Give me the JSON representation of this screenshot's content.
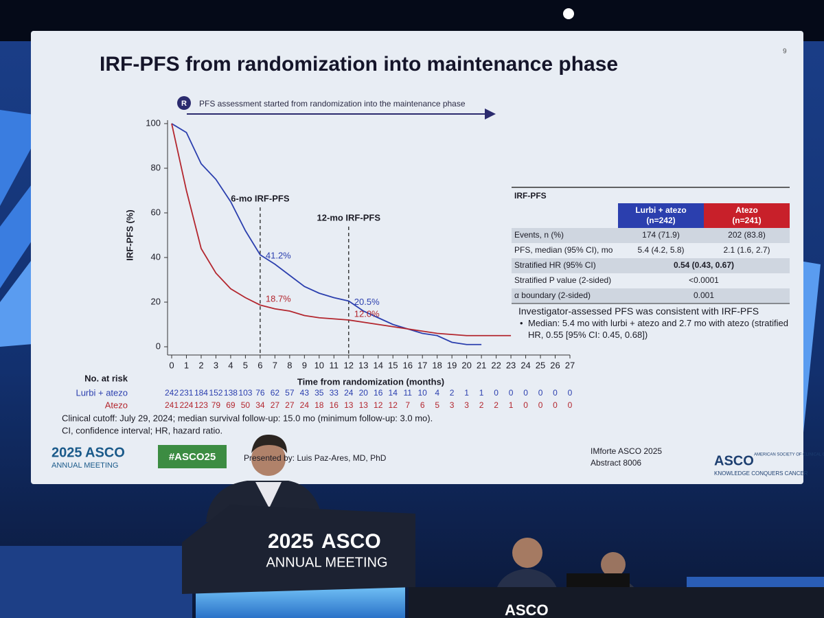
{
  "slide": {
    "title": "IRF-PFS from randomization into maintenance phase",
    "number": "9",
    "randomization_marker": "R",
    "arrow_note": "PFS assessment started from randomization into the maintenance phase",
    "footnote_1": "Clinical cutoff: July 29, 2024; median survival follow-up: 15.0 mo (minimum follow-up: 3.0 mo).",
    "footnote_2": "CI, confidence interval; HR, hazard ratio.",
    "logo_year": "2025",
    "logo_name": "ASCO",
    "logo_sub": "ANNUAL MEETING",
    "hashtag": "#ASCO25",
    "presenter": "Presented by: Luis Paz-Ares, MD, PhD",
    "study": "IMforte ASCO 2025",
    "abstract": "Abstract 8006",
    "asco_logo": "ASCO",
    "asco_society": "AMERICAN SOCIETY OF CLINICAL ONCOLOGY",
    "asco_tagline": "KNOWLEDGE CONQUERS CANCER"
  },
  "chart_data": {
    "type": "line",
    "y_label": "IRF-PFS (%)",
    "x_label": "Time from randomization (months)",
    "x": [
      0,
      1,
      2,
      3,
      4,
      5,
      6,
      7,
      8,
      9,
      10,
      11,
      12,
      13,
      14,
      15,
      16,
      17,
      18,
      19,
      20,
      21,
      22,
      23,
      24,
      25,
      26,
      27
    ],
    "xlim": [
      0,
      27
    ],
    "xticks": [
      0,
      1,
      2,
      3,
      4,
      5,
      6,
      7,
      8,
      9,
      10,
      11,
      12,
      13,
      14,
      15,
      16,
      17,
      18,
      19,
      20,
      21,
      22,
      23,
      24,
      25,
      26,
      27
    ],
    "ylim": [
      0,
      100
    ],
    "yticks": [
      0,
      20,
      40,
      60,
      80,
      100
    ],
    "series": [
      {
        "name": "Lurbi + atezo",
        "color": "#2b3fae",
        "values": [
          100,
          96,
          82,
          75,
          65,
          52,
          41.2,
          37,
          32,
          27,
          24,
          22,
          20.5,
          16,
          13,
          10,
          8,
          6,
          5,
          2,
          1,
          1,
          null,
          null,
          null,
          null,
          null,
          null
        ]
      },
      {
        "name": "Atezo",
        "color": "#b3262e",
        "values": [
          100,
          70,
          44,
          33,
          26,
          22,
          18.7,
          17,
          16,
          14,
          13,
          12.5,
          12,
          11,
          10,
          9,
          8,
          7,
          6,
          5.5,
          5,
          5,
          5,
          5,
          null,
          null,
          null,
          null
        ]
      }
    ],
    "landmarks": [
      {
        "text": "6-mo IRF-PFS",
        "x": 6
      },
      {
        "text": "12-mo IRF-PFS",
        "x": 12
      }
    ],
    "value_annotations": [
      {
        "series": 0,
        "text": "41.2%",
        "x": 6,
        "y": 41.2
      },
      {
        "series": 1,
        "text": "18.7%",
        "x": 6,
        "y": 18.7
      },
      {
        "series": 0,
        "text": "20.5%",
        "x": 12,
        "y": 20.5
      },
      {
        "series": 1,
        "text": "12.0%",
        "x": 12,
        "y": 12
      }
    ],
    "risk_table": {
      "title": "No. at risk",
      "rows": [
        [
          242,
          231,
          184,
          152,
          138,
          103,
          76,
          62,
          57,
          43,
          35,
          33,
          24,
          20,
          16,
          14,
          11,
          10,
          4,
          2,
          1,
          1,
          0,
          0,
          0,
          0,
          0,
          0
        ],
        [
          241,
          224,
          123,
          79,
          69,
          50,
          34,
          27,
          27,
          24,
          18,
          16,
          13,
          13,
          12,
          12,
          7,
          6,
          5,
          3,
          3,
          2,
          2,
          1,
          0,
          0,
          0,
          0
        ]
      ]
    }
  },
  "table": {
    "title": "IRF-PFS",
    "columns": [
      {
        "name": "Lurbi + atezo",
        "n": "(n=242)",
        "color": "#2b3fae"
      },
      {
        "name": "Atezo",
        "n": "(n=241)",
        "color": "#c8202a"
      }
    ],
    "rows": [
      [
        "Events, n (%)",
        "174 (71.9)",
        "202 (83.8)"
      ],
      [
        "PFS, median (95% CI), mo",
        "5.4 (4.2, 5.8)",
        "2.1 (1.6, 2.7)"
      ],
      [
        "Stratified HR (95% CI)",
        "0.54 (0.43, 0.67)"
      ],
      [
        "Stratified P value (2-sided)",
        "<0.0001"
      ],
      [
        "α boundary (2-sided)",
        "0.001"
      ]
    ]
  },
  "note": {
    "heading": "Investigator-assessed PFS was consistent with IRF-PFS",
    "bullet": "Median: 5.4 mo with lurbi + atezo and 2.7 mo with atezo (stratified HR, 0.55 [95% CI: 0.45, 0.68])"
  },
  "venue": {
    "podium_year": "2025",
    "podium_name": "ASCO",
    "podium_sub": "ANNUAL MEETING",
    "desk": "ASCO"
  }
}
